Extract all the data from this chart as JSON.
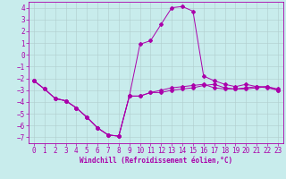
{
  "title": "",
  "xlabel": "Windchill (Refroidissement éolien,°C)",
  "ylabel": "",
  "bg_color": "#c8ecec",
  "grid_color": "#b0cccc",
  "line_color": "#aa00aa",
  "xlim": [
    -0.5,
    23.5
  ],
  "ylim": [
    -7.5,
    4.5
  ],
  "yticks": [
    -7,
    -6,
    -5,
    -4,
    -3,
    -2,
    -1,
    0,
    1,
    2,
    3,
    4
  ],
  "xticks": [
    0,
    1,
    2,
    3,
    4,
    5,
    6,
    7,
    8,
    9,
    10,
    11,
    12,
    13,
    14,
    15,
    16,
    17,
    18,
    19,
    20,
    21,
    22,
    23
  ],
  "series": [
    {
      "x": [
        0,
        1,
        2,
        3,
        4,
        5,
        6,
        7,
        8,
        9,
        10,
        11,
        12,
        13,
        14,
        15,
        16,
        17,
        18,
        19,
        20,
        21,
        22,
        23
      ],
      "y": [
        -2.2,
        -2.9,
        -3.7,
        -3.9,
        -4.5,
        -5.3,
        -6.2,
        -6.8,
        -6.9,
        -3.5,
        -3.5,
        -3.2,
        -3.0,
        -2.8,
        -2.7,
        -2.6,
        -2.5,
        -2.8,
        -2.9,
        -2.9,
        -2.8,
        -2.7,
        -2.7,
        -2.9
      ]
    },
    {
      "x": [
        0,
        1,
        2,
        3,
        4,
        5,
        6,
        7,
        8,
        9,
        10,
        11,
        12,
        13,
        14,
        15,
        16,
        17,
        18,
        19,
        20,
        21,
        22,
        23
      ],
      "y": [
        -2.2,
        -2.9,
        -3.7,
        -3.9,
        -4.5,
        -5.3,
        -6.2,
        -6.8,
        -6.9,
        -3.5,
        0.9,
        1.2,
        2.6,
        4.0,
        4.1,
        3.7,
        -1.8,
        -2.2,
        -2.5,
        -2.7,
        -2.5,
        -2.7,
        -2.8,
        -3.0
      ]
    },
    {
      "x": [
        0,
        1,
        2,
        3,
        4,
        5,
        6,
        7,
        8,
        9,
        10,
        11,
        12,
        13,
        14,
        15,
        16,
        17,
        18,
        19,
        20,
        21,
        22,
        23
      ],
      "y": [
        -2.2,
        -2.9,
        -3.7,
        -3.9,
        -4.5,
        -5.3,
        -6.2,
        -6.8,
        -6.9,
        -3.5,
        -3.5,
        -3.2,
        -3.2,
        -3.0,
        -2.9,
        -2.8,
        -2.6,
        -2.5,
        -2.8,
        -2.9,
        -2.9,
        -2.8,
        -2.7,
        -3.0
      ]
    }
  ],
  "tick_fontsize": 5.5,
  "xlabel_fontsize": 5.5,
  "marker_size": 2.0,
  "linewidth": 0.7
}
